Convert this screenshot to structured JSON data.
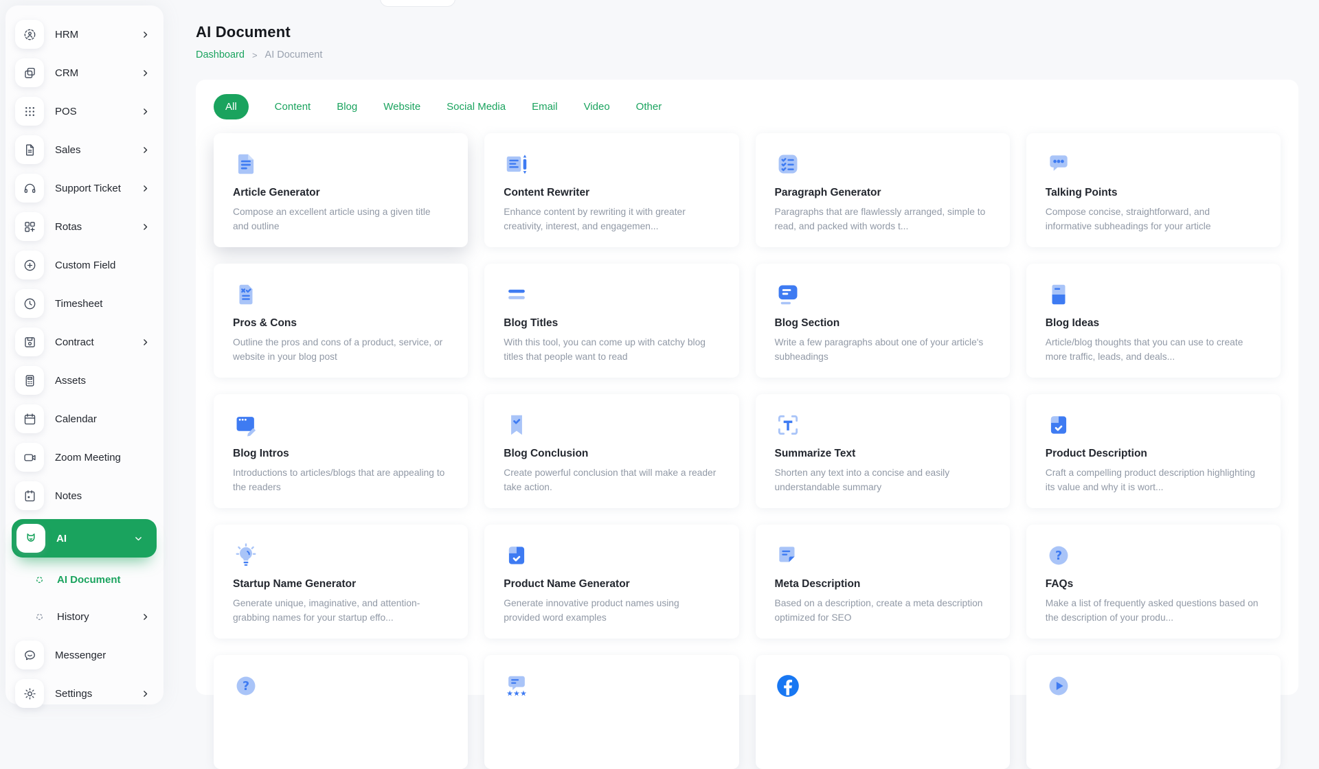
{
  "app": {
    "accent_green": "#1aa35e",
    "accent_blue": "#3e7bf2",
    "accent_blue_light": "#a9c4f8",
    "facebook_blue": "#1877f2",
    "background": "#f7f8fa"
  },
  "header": {
    "title": "AI Document",
    "breadcrumb": {
      "home": "Dashboard",
      "separator": ">",
      "current": "AI Document"
    }
  },
  "sidebar": {
    "items": [
      {
        "label": "HRM",
        "icon": "person-focus-icon",
        "chevron": true,
        "variant": "item"
      },
      {
        "label": "CRM",
        "icon": "copy-cards-icon",
        "chevron": true,
        "variant": "item"
      },
      {
        "label": "POS",
        "icon": "grid-dots-icon",
        "chevron": true,
        "variant": "item"
      },
      {
        "label": "Sales",
        "icon": "document-icon",
        "chevron": true,
        "variant": "item"
      },
      {
        "label": "Support Ticket",
        "icon": "headphones-icon",
        "chevron": true,
        "variant": "item"
      },
      {
        "label": "Rotas",
        "icon": "layout-plus-icon",
        "chevron": true,
        "variant": "item"
      },
      {
        "label": "Custom Field",
        "icon": "plus-circle-icon",
        "chevron": false,
        "variant": "item"
      },
      {
        "label": "Timesheet",
        "icon": "clock-icon",
        "chevron": false,
        "variant": "item"
      },
      {
        "label": "Contract",
        "icon": "save-disk-icon",
        "chevron": true,
        "variant": "item"
      },
      {
        "label": "Assets",
        "icon": "calculator-icon",
        "chevron": false,
        "variant": "item"
      },
      {
        "label": "Calendar",
        "icon": "calendar-icon",
        "chevron": false,
        "variant": "item"
      },
      {
        "label": "Zoom Meeting",
        "icon": "video-camera-icon",
        "chevron": false,
        "variant": "item"
      },
      {
        "label": "Notes",
        "icon": "notepad-icon",
        "chevron": false,
        "variant": "item"
      },
      {
        "label": "AI",
        "icon": "fox-logo-icon",
        "chevron": true,
        "variant": "ai"
      },
      {
        "label": "AI Document",
        "icon": "dashed-circle-icon",
        "chevron": false,
        "variant": "sub-active"
      },
      {
        "label": "History",
        "icon": "dashed-circle-icon",
        "chevron": true,
        "variant": "sub"
      },
      {
        "label": "Messenger",
        "icon": "chat-bubble-icon",
        "chevron": false,
        "variant": "item"
      },
      {
        "label": "Settings",
        "icon": "gear-icon",
        "chevron": true,
        "variant": "item"
      }
    ]
  },
  "tabs": [
    {
      "label": "All",
      "active": true
    },
    {
      "label": "Content",
      "active": false
    },
    {
      "label": "Blog",
      "active": false
    },
    {
      "label": "Website",
      "active": false
    },
    {
      "label": "Social Media",
      "active": false
    },
    {
      "label": "Email",
      "active": false
    },
    {
      "label": "Video",
      "active": false
    },
    {
      "label": "Other",
      "active": false
    }
  ],
  "cards": [
    {
      "title": "Article Generator",
      "description": "Compose an excellent article using a given title and outline",
      "icon": "article-document-icon",
      "highlighted": true
    },
    {
      "title": "Content Rewriter",
      "description": "Enhance content by rewriting it with greater creativity, interest, and engagemen...",
      "icon": "document-pencil-icon"
    },
    {
      "title": "Paragraph Generator",
      "description": "Paragraphs that are flawlessly arranged, simple to read, and packed with words t...",
      "icon": "checklist-icon"
    },
    {
      "title": "Talking Points",
      "description": "Compose concise, straightforward, and informative subheadings for your article",
      "icon": "chat-dots-icon"
    },
    {
      "title": "Pros & Cons",
      "description": "Outline the pros and cons of a product, service, or website in your blog post",
      "icon": "pros-cons-icon"
    },
    {
      "title": "Blog Titles",
      "description": "With this tool, you can come up with catchy blog titles that people want to read",
      "icon": "double-lines-icon"
    },
    {
      "title": "Blog Section",
      "description": "Write a few paragraphs about one of your article's subheadings",
      "icon": "text-section-icon"
    },
    {
      "title": "Blog Ideas",
      "description": "Article/blog thoughts that you can use to create more traffic, leads, and deals...",
      "icon": "notebook-icon"
    },
    {
      "title": "Blog Intros",
      "description": "Introductions to articles/blogs that are appealing to the readers",
      "icon": "window-pencil-icon"
    },
    {
      "title": "Blog Conclusion",
      "description": "Create powerful conclusion that will make a reader take action.",
      "icon": "bookmark-check-icon"
    },
    {
      "title": "Summarize Text",
      "description": "Shorten any text into a concise and easily understandable summary",
      "icon": "text-selection-icon"
    },
    {
      "title": "Product Description",
      "description": "Craft a compelling product description highlighting its value and why it is wort...",
      "icon": "box-check-icon"
    },
    {
      "title": "Startup Name Generator",
      "description": "Generate unique, imaginative, and attention-grabbing names for your startup effo...",
      "icon": "lightbulb-icon"
    },
    {
      "title": "Product Name Generator",
      "description": "Generate innovative product names using provided word examples",
      "icon": "box-check-icon"
    },
    {
      "title": "Meta Description",
      "description": "Based on a description, create a meta description optimized for SEO",
      "icon": "note-corner-icon"
    },
    {
      "title": "FAQs",
      "description": "Make a list of frequently asked questions based on the description of your produ...",
      "icon": "question-circle-icon"
    },
    {
      "title": "",
      "description": "",
      "icon": "question-circle-icon"
    },
    {
      "title": "",
      "description": "",
      "icon": "review-stars-icon"
    },
    {
      "title": "",
      "description": "",
      "icon": "facebook-icon"
    },
    {
      "title": "",
      "description": "",
      "icon": "play-circle-icon"
    }
  ]
}
